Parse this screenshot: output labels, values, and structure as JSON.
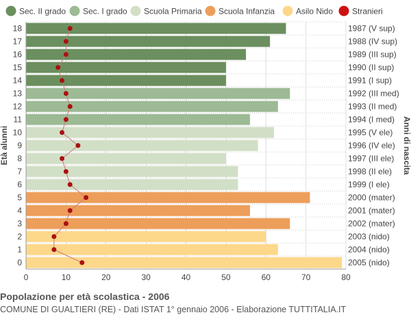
{
  "chart_data": {
    "type": "bar",
    "orientation": "horizontal",
    "title": "Popolazione per età scolastica - 2006",
    "subtitle": "COMUNE DI GUALTIERI (RE) - Dati ISTAT 1° gennaio 2006 - Elaborazione TUTTITALIA.IT",
    "ylabel_left": "Età alunni",
    "ylabel_right": "Anni di nascita",
    "xlim": [
      0,
      80
    ],
    "xticks": [
      0,
      10,
      20,
      30,
      40,
      50,
      60,
      70,
      80
    ],
    "grid": true,
    "legend_position": "top",
    "legend": [
      {
        "name": "Sec. II grado",
        "color": "#6b8f5e"
      },
      {
        "name": "Sec. I grado",
        "color": "#9cba94"
      },
      {
        "name": "Scuola Primaria",
        "color": "#d1dfc6"
      },
      {
        "name": "Scuola Infanzia",
        "color": "#ed9e5a"
      },
      {
        "name": "Asilo Nido",
        "color": "#fdd78a"
      },
      {
        "name": "Stranieri",
        "color": "#cc1111"
      }
    ],
    "rows": [
      {
        "age": "18",
        "birth": "1987 (V sup)",
        "value": 65,
        "stranieri": 11,
        "group": 0
      },
      {
        "age": "17",
        "birth": "1988 (IV sup)",
        "value": 61,
        "stranieri": 10,
        "group": 0
      },
      {
        "age": "16",
        "birth": "1989 (III sup)",
        "value": 55,
        "stranieri": 10,
        "group": 0
      },
      {
        "age": "15",
        "birth": "1990 (II sup)",
        "value": 50,
        "stranieri": 8,
        "group": 0
      },
      {
        "age": "14",
        "birth": "1991 (I sup)",
        "value": 50,
        "stranieri": 9,
        "group": 0
      },
      {
        "age": "13",
        "birth": "1992 (III med)",
        "value": 66,
        "stranieri": 10,
        "group": 1
      },
      {
        "age": "12",
        "birth": "1993 (II med)",
        "value": 63,
        "stranieri": 11,
        "group": 1
      },
      {
        "age": "11",
        "birth": "1994 (I med)",
        "value": 56,
        "stranieri": 10,
        "group": 1
      },
      {
        "age": "10",
        "birth": "1995 (V ele)",
        "value": 62,
        "stranieri": 9,
        "group": 2
      },
      {
        "age": "9",
        "birth": "1996 (IV ele)",
        "value": 58,
        "stranieri": 13,
        "group": 2
      },
      {
        "age": "8",
        "birth": "1997 (III ele)",
        "value": 50,
        "stranieri": 9,
        "group": 2
      },
      {
        "age": "7",
        "birth": "1998 (II ele)",
        "value": 53,
        "stranieri": 10,
        "group": 2
      },
      {
        "age": "6",
        "birth": "1999 (I ele)",
        "value": 53,
        "stranieri": 11,
        "group": 2
      },
      {
        "age": "5",
        "birth": "2000 (mater)",
        "value": 71,
        "stranieri": 15,
        "group": 3
      },
      {
        "age": "4",
        "birth": "2001 (mater)",
        "value": 56,
        "stranieri": 11,
        "group": 3
      },
      {
        "age": "3",
        "birth": "2002 (mater)",
        "value": 66,
        "stranieri": 10,
        "group": 3
      },
      {
        "age": "2",
        "birth": "2003 (nido)",
        "value": 60,
        "stranieri": 7,
        "group": 4
      },
      {
        "age": "1",
        "birth": "2004 (nido)",
        "value": 63,
        "stranieri": 7,
        "group": 4
      },
      {
        "age": "0",
        "birth": "2005 (nido)",
        "value": 79,
        "stranieri": 14,
        "group": 4
      }
    ]
  }
}
